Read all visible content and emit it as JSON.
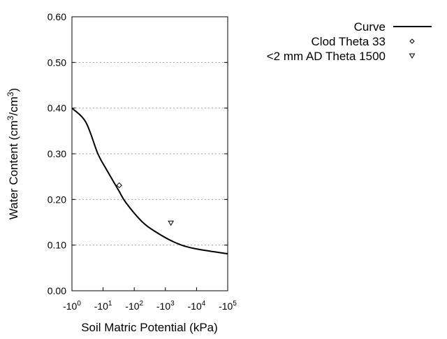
{
  "chart_data": {
    "type": "scatter",
    "title": "",
    "xlabel": "Soil Matric Potential (kPa)",
    "ylabel_main": "Water Content (cm",
    "ylabel_sup1": "3",
    "ylabel_mid": "/cm",
    "ylabel_sup2": "3",
    "ylabel_end": ")",
    "x_scale": "log (negative potential)",
    "xlim": [
      -1,
      -100000
    ],
    "ylim": [
      0,
      0.6
    ],
    "grid": "horizontal dotted",
    "legend_placement": "top-right outside",
    "x_ticks": [
      {
        "base": "-10",
        "exp": "0",
        "value": -1
      },
      {
        "base": "-10",
        "exp": "1",
        "value": -10
      },
      {
        "base": "-10",
        "exp": "2",
        "value": -100
      },
      {
        "base": "-10",
        "exp": "3",
        "value": -1000
      },
      {
        "base": "-10",
        "exp": "4",
        "value": -10000
      },
      {
        "base": "-10",
        "exp": "5",
        "value": -100000
      }
    ],
    "y_ticks": [
      "0.00",
      "0.10",
      "0.20",
      "0.30",
      "0.40",
      "0.50",
      "0.60"
    ],
    "series": [
      {
        "name": "Curve",
        "style": "line",
        "color": "#000000",
        "x": [
          -1,
          -2.8,
          -6.8,
          -13,
          -32,
          -54,
          -174,
          -490,
          -2000,
          -7900,
          -100000
        ],
        "y": [
          0.4,
          0.369,
          0.3,
          0.265,
          0.219,
          0.193,
          0.152,
          0.129,
          0.106,
          0.093,
          0.081
        ]
      },
      {
        "name": "Clod Theta 33",
        "style": "diamond",
        "color": "#000000",
        "x": [
          -33
        ],
        "y": [
          0.231
        ]
      },
      {
        "name": "<2 mm AD Theta 1500",
        "style": "triangle-down",
        "color": "#000000",
        "x": [
          -1500
        ],
        "y": [
          0.148
        ]
      }
    ]
  }
}
